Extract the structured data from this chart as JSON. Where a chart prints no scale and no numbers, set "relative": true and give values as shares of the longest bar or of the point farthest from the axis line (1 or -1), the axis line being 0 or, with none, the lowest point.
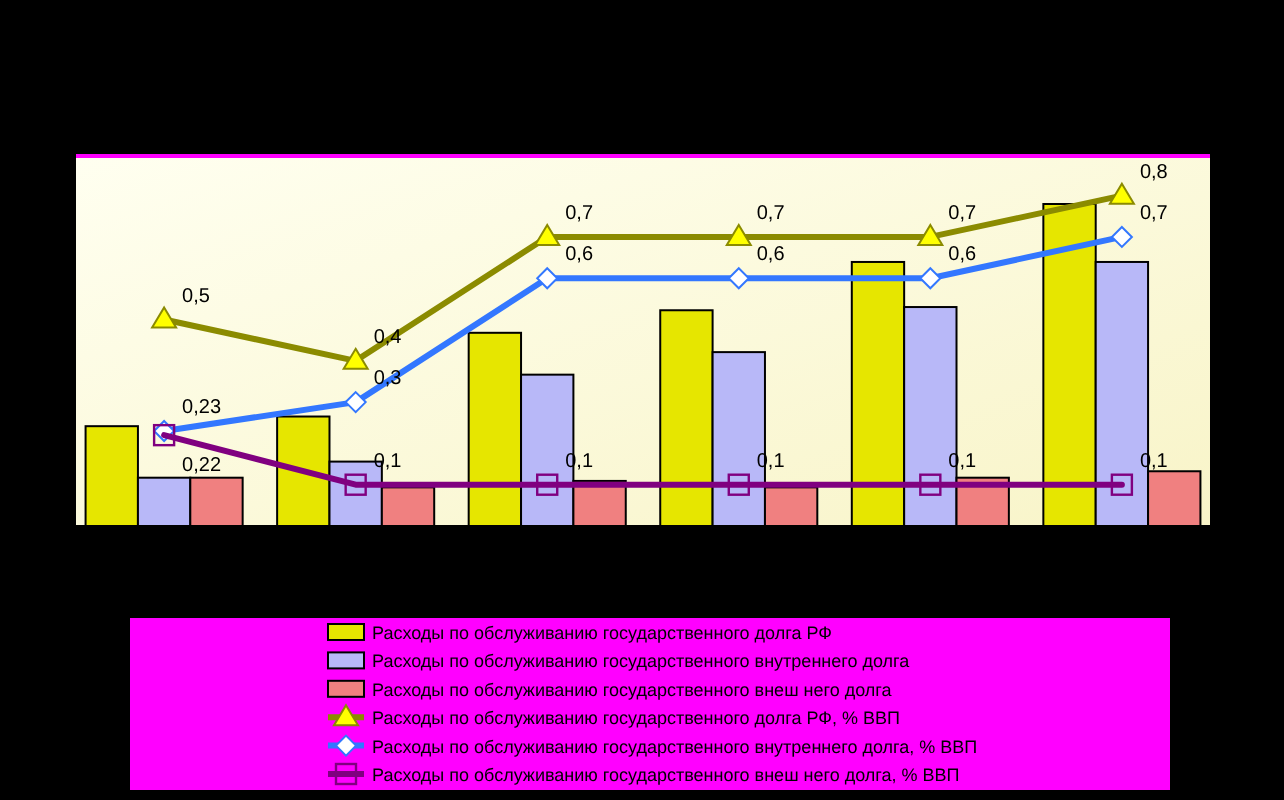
{
  "chart_data": [
    {
      "type": "bar",
      "relative": true,
      "categories": [
        null,
        null,
        null,
        null,
        null,
        null
      ],
      "legend": "bottom",
      "series": [
        {
          "name": "Расходы по обслуживанию государственного долга РФ",
          "color": "#e6e600",
          "values": [
            0.31,
            0.34,
            0.6,
            0.67,
            0.82,
            1
          ]
        },
        {
          "name": "Расходы по обслуживанию государственного внутреннего долга",
          "color": "#b8b8f8",
          "values": [
            0.15,
            0.2,
            0.47,
            0.54,
            0.68,
            0.82
          ]
        },
        {
          "name": "Расходы по  обслуживанию государственного внеш него долга",
          "color": "#f08080",
          "values": [
            0.15,
            0.12,
            0.14,
            0.12,
            0.15,
            0.17
          ]
        }
      ]
    },
    {
      "type": "line",
      "categories": [
        null,
        null,
        null,
        null,
        null,
        null
      ],
      "legend": "bottom",
      "series": [
        {
          "name": "Расходы по обслуживанию государственного долга РФ, %  ВВП",
          "marker": "triangle",
          "color": "#8b8b00",
          "values": [
            0.5,
            0.4,
            0.7,
            0.7,
            0.7,
            0.8
          ],
          "value_labels": [
            "0,5",
            "0,4",
            "0,7",
            "0,7",
            "0,7",
            "0,8"
          ]
        },
        {
          "name": "Расходы по  обслуживанию государственного внутреннего долга,  %  ВВП",
          "marker": "diamond",
          "color": "#3377ff",
          "values": [
            0.23,
            0.3,
            0.6,
            0.6,
            0.6,
            0.7
          ],
          "value_labels": [
            "0,23",
            "0,3",
            "0,6",
            "0,6",
            "0,6",
            "0,7"
          ]
        },
        {
          "name": "Расходы по  обслуживанию государственного внеш него долга, %  ВВП",
          "marker": "square",
          "color": "#800080",
          "values": [
            0.22,
            0.1,
            0.1,
            0.1,
            0.1,
            0.1
          ],
          "value_labels": [
            "0,22",
            "0,1",
            "0,1",
            "0,1",
            "0,1",
            "0,1"
          ]
        }
      ]
    }
  ]
}
